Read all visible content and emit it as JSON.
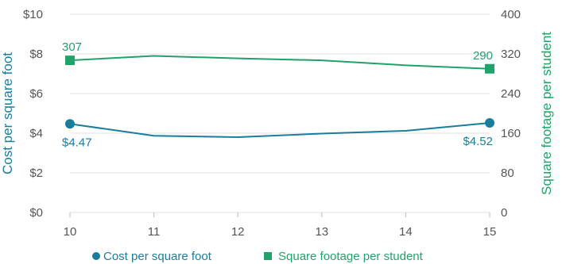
{
  "chart_data": {
    "type": "line",
    "x": [
      10,
      11,
      12,
      13,
      14,
      15
    ],
    "x_tick_labels": [
      "10",
      "11",
      "12",
      "13",
      "14",
      "15"
    ],
    "y_left": {
      "label": "Cost per square foot",
      "ylim": [
        0,
        10
      ],
      "tick_values": [
        0,
        2,
        4,
        6,
        8,
        10
      ],
      "tick_labels": [
        "$0",
        "$2",
        "$4",
        "$6",
        "$8",
        "$10"
      ]
    },
    "y_right": {
      "label": "Square footage per student",
      "ylim": [
        0,
        400
      ],
      "tick_values": [
        0,
        80,
        160,
        240,
        320,
        400
      ],
      "tick_labels": [
        "0",
        "80",
        "160",
        "240",
        "320",
        "400"
      ]
    },
    "series": [
      {
        "name": "Cost per square foot",
        "axis": "left",
        "marker": "circle",
        "color": "#1a7d9c",
        "values": [
          4.47,
          3.87,
          3.8,
          3.98,
          4.12,
          4.52
        ],
        "data_labels": [
          {
            "index": 0,
            "text": "$4.47"
          },
          {
            "index": 5,
            "text": "$4.52"
          }
        ]
      },
      {
        "name": "Square footage per student",
        "axis": "right",
        "marker": "square",
        "color": "#1fa36a",
        "values": [
          307,
          316,
          311,
          307,
          297,
          290
        ],
        "data_labels": [
          {
            "index": 0,
            "text": "307"
          },
          {
            "index": 5,
            "text": "290"
          }
        ]
      }
    ],
    "grid": "horizontal",
    "grid_color": "#e0e0e0",
    "legend_position": "bottom"
  }
}
